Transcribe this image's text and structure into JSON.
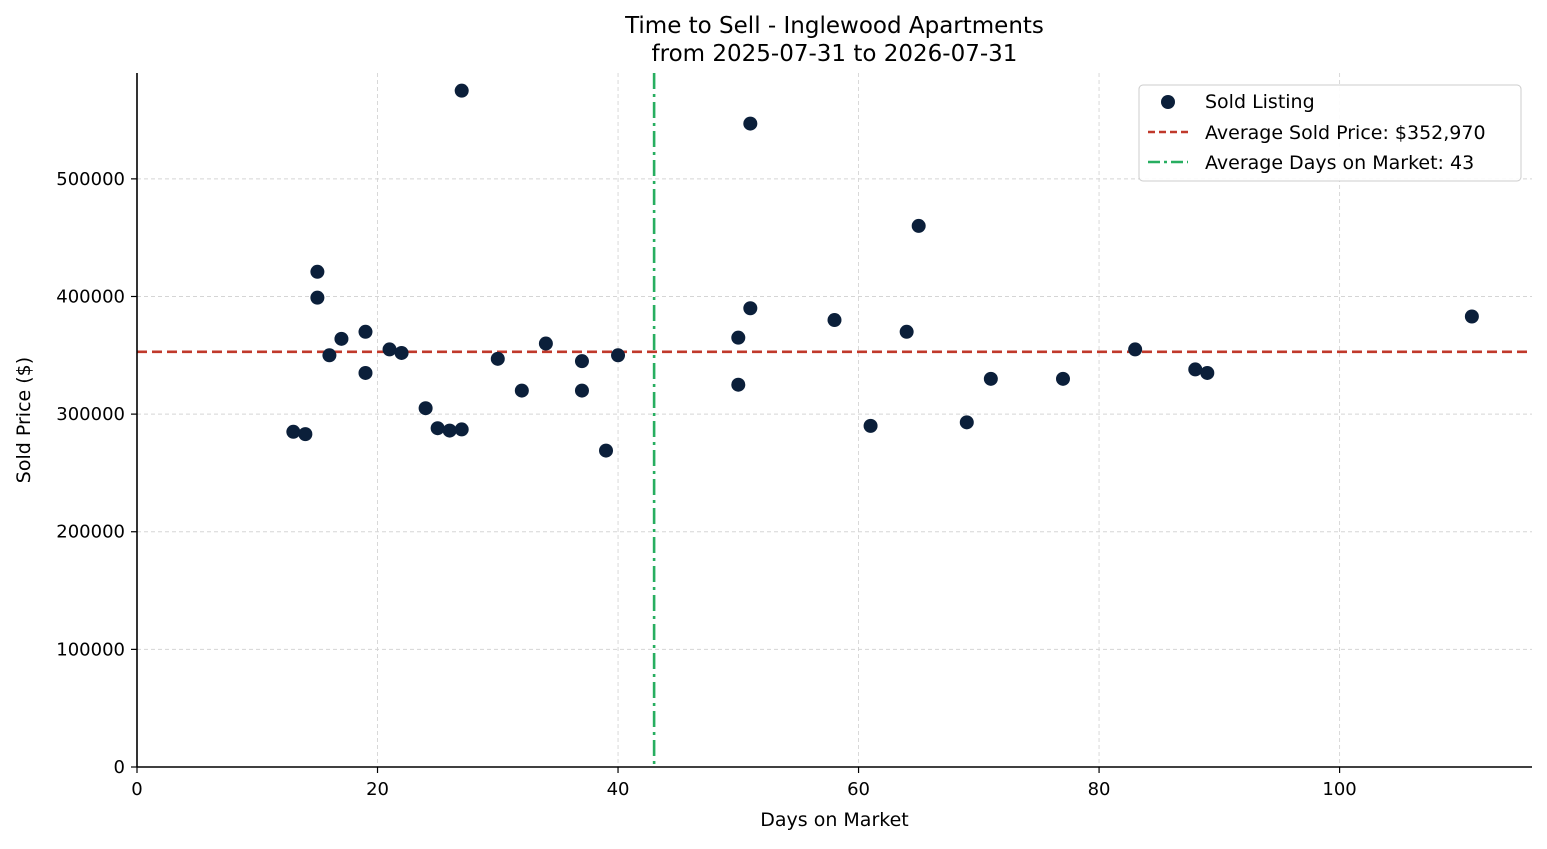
{
  "chart_data": {
    "type": "scatter",
    "title": "Time to Sell - Inglewood Apartments",
    "subtitle": "from 2025-07-31 to 2026-07-31",
    "xlabel": "Days on Market",
    "ylabel": "Sold Price ($)",
    "xlim": [
      0,
      116
    ],
    "ylim": [
      0,
      590000
    ],
    "x_ticks": [
      0,
      20,
      40,
      60,
      80,
      100
    ],
    "y_ticks": [
      0,
      100000,
      200000,
      300000,
      400000,
      500000
    ],
    "grid": true,
    "legend_position": "top-right",
    "colors": {
      "points": "#0b1f3a",
      "avg_price_line": "#c0392b",
      "avg_days_line": "#27ae60",
      "grid": "#d5d5d5",
      "axis": "#000000"
    },
    "series": [
      {
        "name": "Sold Listing",
        "points": [
          {
            "x": 13,
            "y": 285000
          },
          {
            "x": 14,
            "y": 283000
          },
          {
            "x": 15,
            "y": 421000
          },
          {
            "x": 15,
            "y": 399000
          },
          {
            "x": 16,
            "y": 350000
          },
          {
            "x": 17,
            "y": 364000
          },
          {
            "x": 19,
            "y": 370000
          },
          {
            "x": 19,
            "y": 335000
          },
          {
            "x": 21,
            "y": 355000
          },
          {
            "x": 22,
            "y": 352000
          },
          {
            "x": 24,
            "y": 305000
          },
          {
            "x": 25,
            "y": 288000
          },
          {
            "x": 26,
            "y": 286000
          },
          {
            "x": 27,
            "y": 287000
          },
          {
            "x": 27,
            "y": 575000
          },
          {
            "x": 30,
            "y": 347000
          },
          {
            "x": 32,
            "y": 320000
          },
          {
            "x": 34,
            "y": 360000
          },
          {
            "x": 37,
            "y": 345000
          },
          {
            "x": 37,
            "y": 320000
          },
          {
            "x": 39,
            "y": 269000
          },
          {
            "x": 40,
            "y": 350000
          },
          {
            "x": 50,
            "y": 365000
          },
          {
            "x": 50,
            "y": 325000
          },
          {
            "x": 51,
            "y": 547000
          },
          {
            "x": 51,
            "y": 390000
          },
          {
            "x": 58,
            "y": 380000
          },
          {
            "x": 61,
            "y": 290000
          },
          {
            "x": 64,
            "y": 370000
          },
          {
            "x": 65,
            "y": 460000
          },
          {
            "x": 69,
            "y": 293000
          },
          {
            "x": 71,
            "y": 330000
          },
          {
            "x": 77,
            "y": 330000
          },
          {
            "x": 83,
            "y": 355000
          },
          {
            "x": 88,
            "y": 338000
          },
          {
            "x": 89,
            "y": 335000
          },
          {
            "x": 111,
            "y": 383000
          }
        ]
      }
    ],
    "reference_lines": [
      {
        "name": "Average Sold Price: $352,970",
        "orientation": "horizontal",
        "value": 352970,
        "style": "dashed"
      },
      {
        "name": "Average Days on Market: 43",
        "orientation": "vertical",
        "value": 43,
        "style": "dashdot"
      }
    ]
  }
}
